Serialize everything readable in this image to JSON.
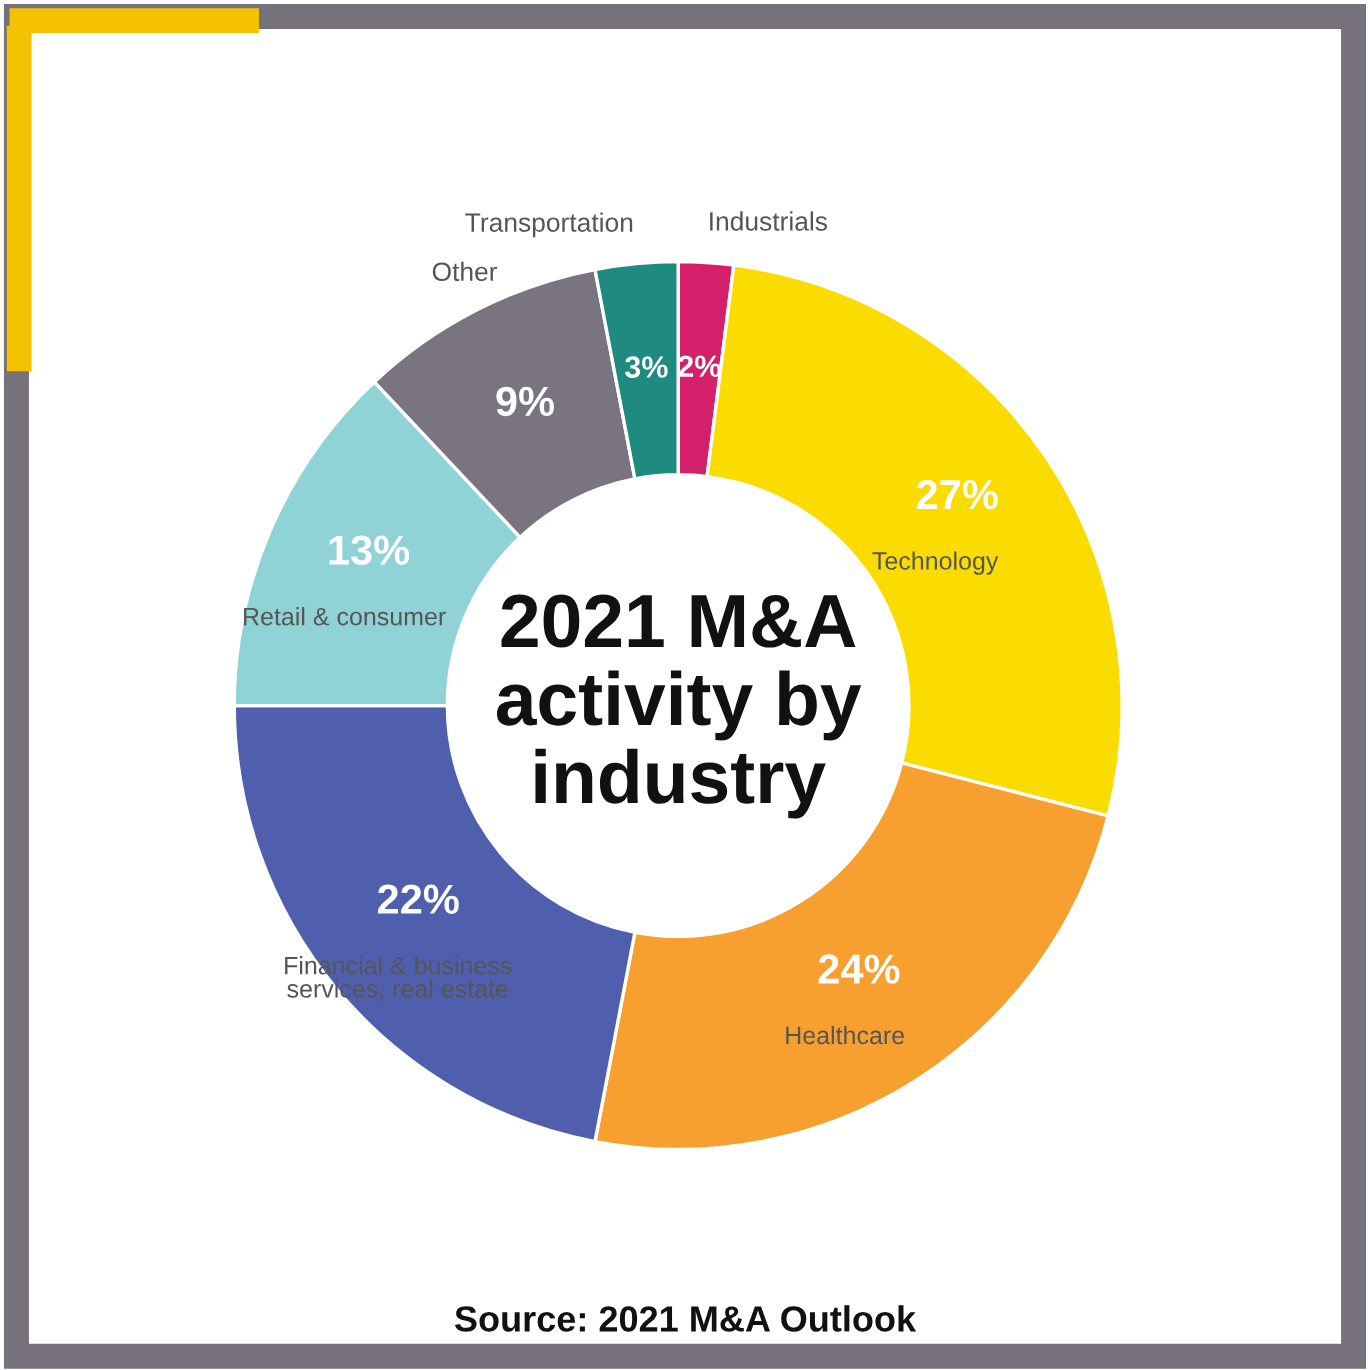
{
  "chart_data": {
    "type": "donut",
    "title": "2021 M&A\nactivity by\nindustry",
    "categories": [
      "Industrials",
      "Technology",
      "Healthcare",
      "Financial & business\nservices, real estate",
      "Retail & consumer",
      "Other",
      "Transportation"
    ],
    "values": [
      2,
      27,
      24,
      22,
      13,
      9,
      3
    ],
    "value_labels": [
      "2%",
      "27%",
      "24%",
      "22%",
      "13%",
      "9%",
      "3%"
    ],
    "colors": [
      "#d4206a",
      "#fbdc00",
      "#f7a030",
      "#4f5fae",
      "#8fd3d6",
      "#7a7480",
      "#1e8a80"
    ],
    "legend": false,
    "annotations": [
      "Source: 2021 M&A Outlook"
    ]
  }
}
